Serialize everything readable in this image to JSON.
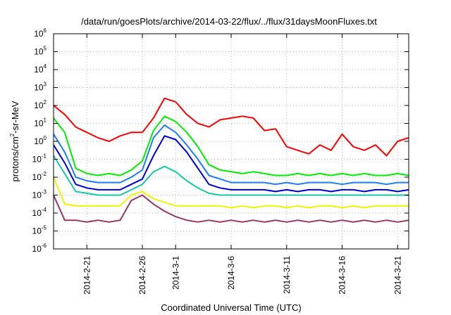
{
  "chart_data": {
    "type": "line",
    "title": "/data/run/goesPlots/archive/2014-03-22/flux/../flux/31daysMoonFluxes.txt",
    "xlabel": "Coordinated Universal Time (UTC)",
    "ylabel": {
      "prefix": "protons/cm",
      "sup": "2",
      "suffix": "-sr-MeV"
    },
    "yscale": "log",
    "ylim_exponent": [
      -6,
      6
    ],
    "y_ticks": [
      {
        "base": "10",
        "exp": "-6"
      },
      {
        "base": "10",
        "exp": "-5"
      },
      {
        "base": "10",
        "exp": "-4"
      },
      {
        "base": "10",
        "exp": "-3"
      },
      {
        "base": "10",
        "exp": "-2"
      },
      {
        "base": "10",
        "exp": "-1"
      },
      {
        "base": "10",
        "exp": "0"
      },
      {
        "base": "10",
        "exp": "1"
      },
      {
        "base": "10",
        "exp": "2"
      },
      {
        "base": "10",
        "exp": "3"
      },
      {
        "base": "10",
        "exp": "4"
      },
      {
        "base": "10",
        "exp": "5"
      },
      {
        "base": "10",
        "exp": "6"
      }
    ],
    "x_tick_days": [
      2.0,
      7.0,
      10.0,
      15.0,
      20.0,
      25.0,
      30.0
    ],
    "x_tick_labels": [
      "2014-2-21",
      "2014-2-26",
      "2014-3-1",
      "2014-3-6",
      "2014-3-11",
      "2014-3-16",
      "2014-3-21"
    ],
    "xlim_days": [
      -1.0,
      31.0
    ],
    "x_unit_note_removed": true,
    "grid": true,
    "series": [
      {
        "color": "#ff0000",
        "x": [
          -1,
          0,
          1,
          2,
          3,
          4,
          5,
          6,
          7,
          8,
          9,
          10,
          11,
          12,
          13,
          14,
          15,
          16,
          17,
          18,
          19,
          20,
          21,
          22,
          23,
          24,
          25,
          26,
          27,
          28,
          29,
          30,
          31
        ],
        "log_y": [
          2.0,
          1.5,
          0.8,
          0.5,
          0.2,
          0.0,
          0.3,
          0.5,
          0.5,
          1.3,
          2.4,
          2.2,
          1.5,
          1.0,
          0.8,
          1.2,
          1.3,
          1.4,
          1.3,
          0.6,
          0.7,
          -0.3,
          -0.5,
          -0.7,
          -0.2,
          -0.5,
          0.4,
          -0.3,
          -0.5,
          -0.2,
          -0.8,
          0.0,
          0.2
        ]
      },
      {
        "color": "#00ee00",
        "x": [
          -1,
          0,
          1,
          2,
          3,
          4,
          5,
          6,
          7,
          8,
          9,
          10,
          11,
          12,
          13,
          14,
          15,
          16,
          17,
          18,
          19,
          20,
          21,
          22,
          23,
          24,
          25,
          26,
          27,
          28,
          29,
          30,
          31
        ],
        "log_y": [
          1.3,
          0.5,
          -1.5,
          -1.8,
          -1.9,
          -1.8,
          -1.9,
          -1.6,
          -1.1,
          0.6,
          1.4,
          1.1,
          0.5,
          -0.3,
          -1.3,
          -1.6,
          -1.7,
          -1.8,
          -1.7,
          -1.8,
          -1.9,
          -1.9,
          -1.8,
          -1.9,
          -1.8,
          -1.9,
          -1.8,
          -1.9,
          -1.8,
          -1.9,
          -1.9,
          -1.8,
          -1.9
        ]
      },
      {
        "color": "#1a7dff",
        "x": [
          -1,
          0,
          1,
          2,
          3,
          4,
          5,
          6,
          7,
          8,
          9,
          10,
          11,
          12,
          13,
          14,
          15,
          16,
          17,
          18,
          19,
          20,
          21,
          22,
          23,
          24,
          25,
          26,
          27,
          28,
          29,
          30,
          31
        ],
        "log_y": [
          0.4,
          -0.6,
          -2.0,
          -2.2,
          -2.3,
          -2.3,
          -2.3,
          -2.0,
          -1.6,
          0.2,
          0.9,
          0.5,
          -0.2,
          -1.0,
          -1.9,
          -2.1,
          -2.3,
          -2.3,
          -2.3,
          -2.3,
          -2.4,
          -2.3,
          -2.4,
          -2.3,
          -2.3,
          -2.3,
          -2.4,
          -2.3,
          -2.3,
          -2.3,
          -2.4,
          -2.3,
          -2.3
        ]
      },
      {
        "color": "#0000dd",
        "x": [
          -1,
          0,
          1,
          2,
          3,
          4,
          5,
          6,
          7,
          8,
          9,
          10,
          11,
          12,
          13,
          14,
          15,
          16,
          17,
          18,
          19,
          20,
          21,
          22,
          23,
          24,
          25,
          26,
          27,
          28,
          29,
          30,
          31
        ],
        "log_y": [
          -0.2,
          -1.2,
          -2.4,
          -2.6,
          -2.7,
          -2.7,
          -2.7,
          -2.4,
          -2.1,
          -0.8,
          0.3,
          0.1,
          -0.6,
          -1.5,
          -2.4,
          -2.6,
          -2.7,
          -2.7,
          -2.7,
          -2.7,
          -2.8,
          -2.7,
          -2.8,
          -2.7,
          -2.7,
          -2.8,
          -2.7,
          -2.7,
          -2.8,
          -2.7,
          -2.7,
          -2.8,
          -2.7
        ]
      },
      {
        "color": "#16c8a8",
        "x": [
          -1,
          0,
          1,
          2,
          3,
          4,
          5,
          6,
          7,
          8,
          9,
          10,
          11,
          12,
          13,
          14,
          15,
          16,
          17,
          18,
          19,
          20,
          21,
          22,
          23,
          24,
          25,
          26,
          27,
          28,
          29,
          30,
          31
        ],
        "log_y": [
          -0.8,
          -1.8,
          -2.8,
          -2.9,
          -3.0,
          -3.0,
          -3.0,
          -2.7,
          -2.4,
          -1.7,
          -1.4,
          -1.7,
          -2.2,
          -2.6,
          -2.9,
          -3.0,
          -3.0,
          -3.0,
          -3.0,
          -3.0,
          -3.0,
          -3.0,
          -3.0,
          -3.0,
          -3.0,
          -3.0,
          -3.0,
          -3.0,
          -3.0,
          -3.0,
          -3.0,
          -3.0,
          -3.0
        ]
      },
      {
        "color": "#f2f200",
        "x": [
          -1,
          0,
          1,
          2,
          3,
          4,
          5,
          6,
          7,
          8,
          9,
          10,
          11,
          12,
          13,
          14,
          15,
          16,
          17,
          18,
          19,
          20,
          21,
          22,
          23,
          24,
          25,
          26,
          27,
          28,
          29,
          30,
          31
        ],
        "log_y": [
          -2.0,
          -3.5,
          -3.6,
          -3.6,
          -3.6,
          -3.6,
          -3.6,
          -3.0,
          -2.8,
          -3.2,
          -3.4,
          -3.6,
          -3.6,
          -3.6,
          -3.6,
          -3.6,
          -3.7,
          -3.6,
          -3.7,
          -3.6,
          -3.6,
          -3.7,
          -3.6,
          -3.7,
          -3.6,
          -3.6,
          -3.7,
          -3.6,
          -3.7,
          -3.6,
          -3.6,
          -3.6,
          -3.6
        ]
      },
      {
        "color": "#993366",
        "x": [
          -1,
          0,
          1,
          2,
          3,
          4,
          5,
          6,
          7,
          8,
          9,
          10,
          11,
          12,
          13,
          14,
          15,
          16,
          17,
          18,
          19,
          20,
          21,
          22,
          23,
          24,
          25,
          26,
          27,
          28,
          29,
          30,
          31
        ],
        "log_y": [
          -3.0,
          -4.4,
          -4.4,
          -4.5,
          -4.4,
          -4.5,
          -4.4,
          -3.3,
          -3.0,
          -3.5,
          -3.9,
          -4.2,
          -4.4,
          -4.5,
          -4.4,
          -4.5,
          -4.4,
          -4.5,
          -4.4,
          -4.5,
          -4.4,
          -4.5,
          -4.4,
          -4.5,
          -4.4,
          -4.5,
          -4.4,
          -4.5,
          -4.4,
          -4.5,
          -4.4,
          -4.5,
          -4.4
        ]
      }
    ]
  }
}
